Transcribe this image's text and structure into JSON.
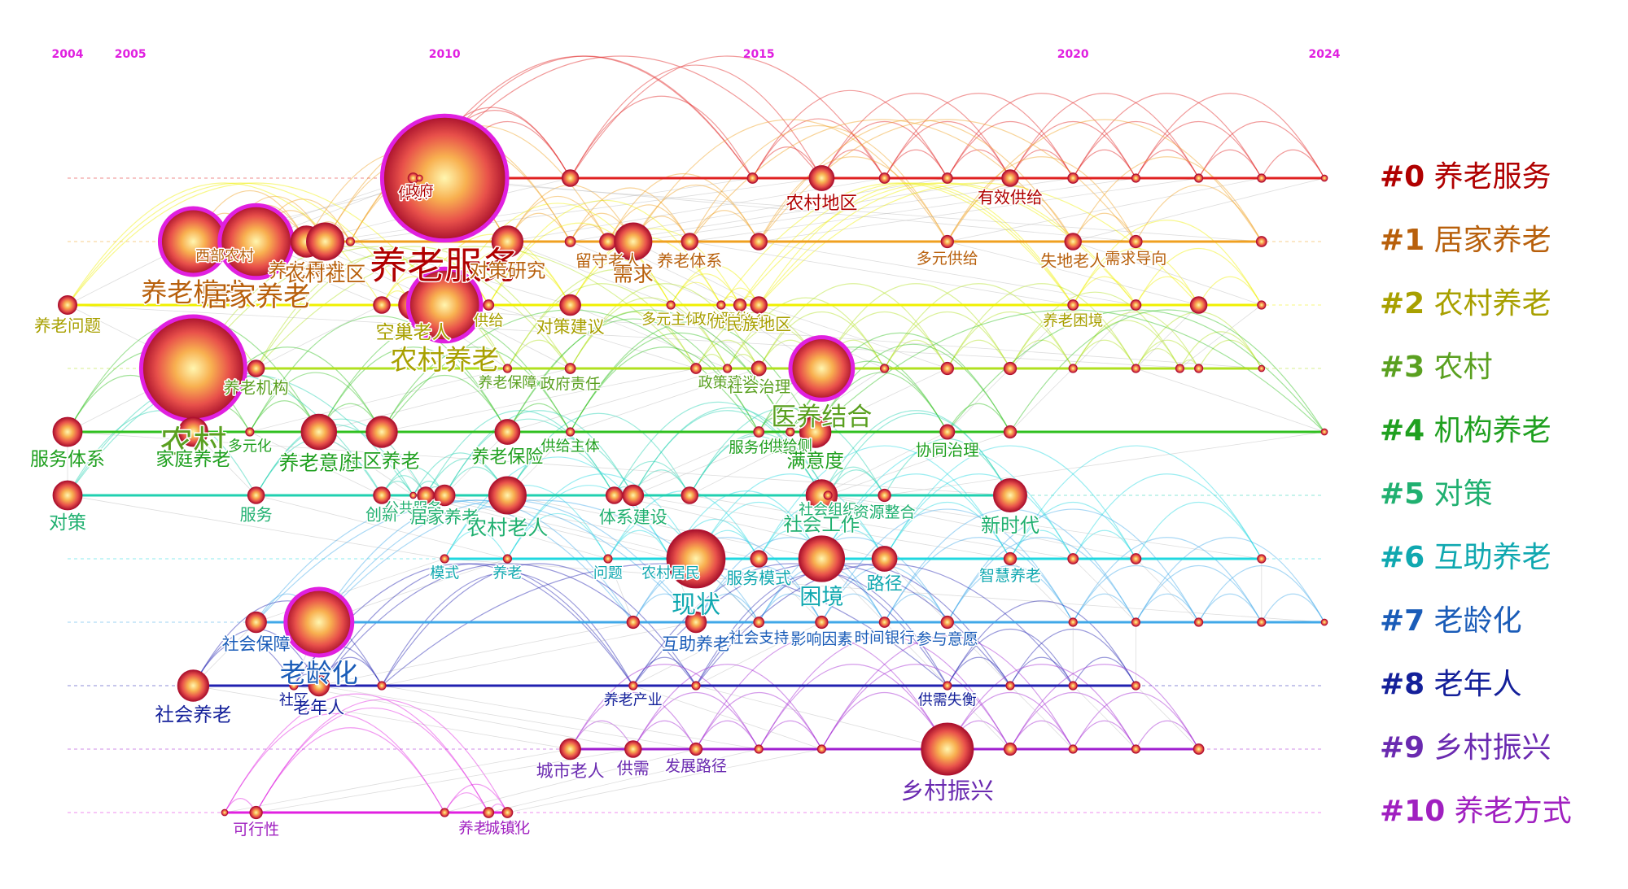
{
  "chart_data": {
    "type": "timeline",
    "xlim": [
      2004,
      2024
    ],
    "xticks": [
      2004,
      2005,
      2010,
      2015,
      2020,
      2024
    ],
    "tick_color": "#e020e0",
    "clusters": [
      {
        "id": "#0",
        "name": "养老服务",
        "color": "#b00000",
        "line": "#e02020",
        "nodes": [
          {
            "year": 2010.0,
            "count": 60,
            "label": "养老服务"
          },
          {
            "year": 2009.5,
            "count": 5,
            "label": "体系"
          },
          {
            "year": 2009.6,
            "count": 3,
            "label": "政府"
          },
          {
            "year": 2012.0,
            "count": 8
          },
          {
            "year": 2014.9,
            "count": 5
          },
          {
            "year": 2016.0,
            "count": 12,
            "label": "农村地区"
          },
          {
            "year": 2017.0,
            "count": 5
          },
          {
            "year": 2018.0,
            "count": 5
          },
          {
            "year": 2019.0,
            "count": 8,
            "label": "有效供给"
          },
          {
            "year": 2020.0,
            "count": 5
          },
          {
            "year": 2021.0,
            "count": 4
          },
          {
            "year": 2022.0,
            "count": 4
          },
          {
            "year": 2023.0,
            "count": 4
          },
          {
            "year": 2024.0,
            "count": 3
          }
        ]
      },
      {
        "id": "#1",
        "name": "居家养老",
        "color": "#b8600c",
        "line": "#f0a020",
        "nodes": [
          {
            "year": 2006.0,
            "count": 32,
            "label": "养老模式"
          },
          {
            "year": 2006.5,
            "count": 4,
            "label": "西部农村"
          },
          {
            "year": 2007.0,
            "count": 35,
            "label": "居家养老"
          },
          {
            "year": 2007.8,
            "count": 15,
            "label": "养老需求"
          },
          {
            "year": 2008.1,
            "count": 18,
            "label": "农村社区"
          },
          {
            "year": 2008.5,
            "count": 4
          },
          {
            "year": 2011.0,
            "count": 15,
            "label": "对策研究"
          },
          {
            "year": 2012.0,
            "count": 5
          },
          {
            "year": 2012.6,
            "count": 8,
            "label": "留守老人"
          },
          {
            "year": 2013.0,
            "count": 18,
            "label": "需求"
          },
          {
            "year": 2013.9,
            "count": 8,
            "label": "养老体系"
          },
          {
            "year": 2015.0,
            "count": 8
          },
          {
            "year": 2018.0,
            "count": 6,
            "label": "多元供给"
          },
          {
            "year": 2020.0,
            "count": 8,
            "label": "失地老人"
          },
          {
            "year": 2021.0,
            "count": 6,
            "label": "需求导向"
          },
          {
            "year": 2023.0,
            "count": 5
          }
        ]
      },
      {
        "id": "#2",
        "name": "农村养老",
        "color": "#a8a000",
        "line": "#f0f000",
        "nodes": [
          {
            "year": 2004.0,
            "count": 9,
            "label": "养老问题"
          },
          {
            "year": 2009.0,
            "count": 8
          },
          {
            "year": 2009.5,
            "count": 14,
            "label": "空巢老人"
          },
          {
            "year": 2010.0,
            "count": 35,
            "label": "农村养老"
          },
          {
            "year": 2010.7,
            "count": 5,
            "label": "供给"
          },
          {
            "year": 2012.0,
            "count": 10,
            "label": "对策建议"
          },
          {
            "year": 2013.6,
            "count": 4,
            "label": "多元主体"
          },
          {
            "year": 2014.4,
            "count": 4,
            "label": "政府职能"
          },
          {
            "year": 2014.7,
            "count": 6,
            "label": "优化路径"
          },
          {
            "year": 2015.0,
            "count": 8,
            "label": "民族地区"
          },
          {
            "year": 2020.0,
            "count": 5,
            "label": "养老困境"
          },
          {
            "year": 2021.0,
            "count": 5
          },
          {
            "year": 2022.0,
            "count": 8
          },
          {
            "year": 2023.0,
            "count": 4
          }
        ]
      },
      {
        "id": "#3",
        "name": "农村",
        "color": "#5aa020",
        "line": "#b0e020",
        "nodes": [
          {
            "year": 2006.0,
            "count": 50,
            "label": "农村"
          },
          {
            "year": 2007.0,
            "count": 8,
            "label": "养老机构"
          },
          {
            "year": 2011.0,
            "count": 4,
            "label": "养老保障"
          },
          {
            "year": 2012.0,
            "count": 5,
            "label": "政府责任"
          },
          {
            "year": 2014.0,
            "count": 5
          },
          {
            "year": 2014.5,
            "count": 4,
            "label": "政策建议"
          },
          {
            "year": 2015.0,
            "count": 7,
            "label": "社会治理"
          },
          {
            "year": 2016.0,
            "count": 30,
            "label": "医养结合"
          },
          {
            "year": 2017.0,
            "count": 4
          },
          {
            "year": 2018.0,
            "count": 6
          },
          {
            "year": 2019.0,
            "count": 6
          },
          {
            "year": 2020.0,
            "count": 4
          },
          {
            "year": 2021.0,
            "count": 4
          },
          {
            "year": 2021.7,
            "count": 4
          },
          {
            "year": 2022.0,
            "count": 4
          },
          {
            "year": 2023.0,
            "count": 3
          }
        ]
      },
      {
        "id": "#4",
        "name": "机构养老",
        "color": "#20a020",
        "line": "#30c020",
        "nodes": [
          {
            "year": 2004.0,
            "count": 14,
            "label": "服务体系"
          },
          {
            "year": 2006.0,
            "count": 14,
            "label": "家庭养老"
          },
          {
            "year": 2006.9,
            "count": 4,
            "label": "多元化"
          },
          {
            "year": 2008.0,
            "count": 17,
            "label": "养老意愿"
          },
          {
            "year": 2009.0,
            "count": 15,
            "label": "社区养老"
          },
          {
            "year": 2011.0,
            "count": 12,
            "label": "养老保险"
          },
          {
            "year": 2012.0,
            "count": 4,
            "label": "供给主体"
          },
          {
            "year": 2015.0,
            "count": 5,
            "label": "服务供给"
          },
          {
            "year": 2015.5,
            "count": 4,
            "label": "供给侧"
          },
          {
            "year": 2015.9,
            "count": 15,
            "label": "满意度"
          },
          {
            "year": 2018.0,
            "count": 7,
            "label": "协同治理"
          },
          {
            "year": 2019.0,
            "count": 6
          },
          {
            "year": 2024.0,
            "count": 3
          }
        ]
      },
      {
        "id": "#5",
        "name": "对策",
        "color": "#20b070",
        "line": "#20d0b0",
        "nodes": [
          {
            "year": 2004.0,
            "count": 14,
            "label": "对策"
          },
          {
            "year": 2007.0,
            "count": 8,
            "label": "服务"
          },
          {
            "year": 2009.0,
            "count": 8,
            "label": "创新"
          },
          {
            "year": 2009.5,
            "count": 3,
            "label": "公共服务"
          },
          {
            "year": 2009.7,
            "count": 8,
            "label": "发展"
          },
          {
            "year": 2010.0,
            "count": 10,
            "label": "居家养老"
          },
          {
            "year": 2011.0,
            "count": 18,
            "label": "农村老人"
          },
          {
            "year": 2012.7,
            "count": 8
          },
          {
            "year": 2013.0,
            "count": 10,
            "label": "体系建设"
          },
          {
            "year": 2013.9,
            "count": 8
          },
          {
            "year": 2016.0,
            "count": 15,
            "label": "社会工作"
          },
          {
            "year": 2016.1,
            "count": 4,
            "label": "社会组织"
          },
          {
            "year": 2017.0,
            "count": 6,
            "label": "资源整合"
          },
          {
            "year": 2019.0,
            "count": 16,
            "label": "新时代"
          }
        ]
      },
      {
        "id": "#6",
        "name": "互助养老",
        "color": "#10a8b0",
        "line": "#20d8e0",
        "nodes": [
          {
            "year": 2010.0,
            "count": 4,
            "label": "模式"
          },
          {
            "year": 2011.0,
            "count": 4,
            "label": "养老"
          },
          {
            "year": 2012.6,
            "count": 4,
            "label": "问题"
          },
          {
            "year": 2013.6,
            "count": 4,
            "label": "农村居民"
          },
          {
            "year": 2014.0,
            "count": 28,
            "label": "现状"
          },
          {
            "year": 2015.0,
            "count": 8,
            "label": "服务模式"
          },
          {
            "year": 2016.0,
            "count": 22,
            "label": "困境"
          },
          {
            "year": 2017.0,
            "count": 12,
            "label": "路径"
          },
          {
            "year": 2019.0,
            "count": 6,
            "label": "智慧养老"
          },
          {
            "year": 2020.0,
            "count": 5
          },
          {
            "year": 2021.0,
            "count": 5
          },
          {
            "year": 2023.0,
            "count": 4
          }
        ]
      },
      {
        "id": "#7",
        "name": "老龄化",
        "color": "#1a5cb8",
        "line": "#40a8e8",
        "nodes": [
          {
            "year": 2007.0,
            "count": 10,
            "label": "社会保障"
          },
          {
            "year": 2008.0,
            "count": 32,
            "label": "老龄化"
          },
          {
            "year": 2013.0,
            "count": 6
          },
          {
            "year": 2014.0,
            "count": 10,
            "label": "互助养老"
          },
          {
            "year": 2015.0,
            "count": 5,
            "label": "社会支持"
          },
          {
            "year": 2016.0,
            "count": 6,
            "label": "影响因素"
          },
          {
            "year": 2017.0,
            "count": 5,
            "label": "时间银行"
          },
          {
            "year": 2018.0,
            "count": 6,
            "label": "参与意愿"
          },
          {
            "year": 2020.0,
            "count": 4
          },
          {
            "year": 2021.0,
            "count": 4
          },
          {
            "year": 2022.0,
            "count": 4
          },
          {
            "year": 2023.0,
            "count": 4
          },
          {
            "year": 2024.0,
            "count": 3
          }
        ]
      },
      {
        "id": "#8",
        "name": "老年人",
        "color": "#14209a",
        "line": "#2020b0",
        "nodes": [
          {
            "year": 2006.0,
            "count": 15,
            "label": "社会养老"
          },
          {
            "year": 2007.6,
            "count": 4,
            "label": "社区"
          },
          {
            "year": 2008.0,
            "count": 10,
            "label": "老年人"
          },
          {
            "year": 2009.0,
            "count": 4
          },
          {
            "year": 2013.0,
            "count": 4,
            "label": "养老产业"
          },
          {
            "year": 2014.0,
            "count": 4
          },
          {
            "year": 2018.0,
            "count": 4,
            "label": "供需失衡"
          },
          {
            "year": 2019.0,
            "count": 4
          },
          {
            "year": 2020.0,
            "count": 4
          },
          {
            "year": 2021.0,
            "count": 4
          }
        ]
      },
      {
        "id": "#9",
        "name": "乡村振兴",
        "color": "#6a2ab0",
        "line": "#a020d0",
        "nodes": [
          {
            "year": 2012.0,
            "count": 10,
            "label": "城市老人"
          },
          {
            "year": 2013.0,
            "count": 8,
            "label": "供需"
          },
          {
            "year": 2014.0,
            "count": 6,
            "label": "发展路径"
          },
          {
            "year": 2015.0,
            "count": 4
          },
          {
            "year": 2016.0,
            "count": 4
          },
          {
            "year": 2018.0,
            "count": 25,
            "label": "乡村振兴"
          },
          {
            "year": 2019.0,
            "count": 6
          },
          {
            "year": 2020.0,
            "count": 4
          },
          {
            "year": 2021.0,
            "count": 4
          },
          {
            "year": 2022.0,
            "count": 5
          }
        ]
      },
      {
        "id": "#10",
        "name": "养老方式",
        "color": "#a020c0",
        "line": "#e020e0",
        "nodes": [
          {
            "year": 2006.5,
            "count": 3
          },
          {
            "year": 2007.0,
            "count": 6,
            "label": "可行性"
          },
          {
            "year": 2010.0,
            "count": 4
          },
          {
            "year": 2010.7,
            "count": 5,
            "label": "养老方式"
          },
          {
            "year": 2011.0,
            "count": 5,
            "label": "城镇化"
          }
        ]
      }
    ]
  }
}
